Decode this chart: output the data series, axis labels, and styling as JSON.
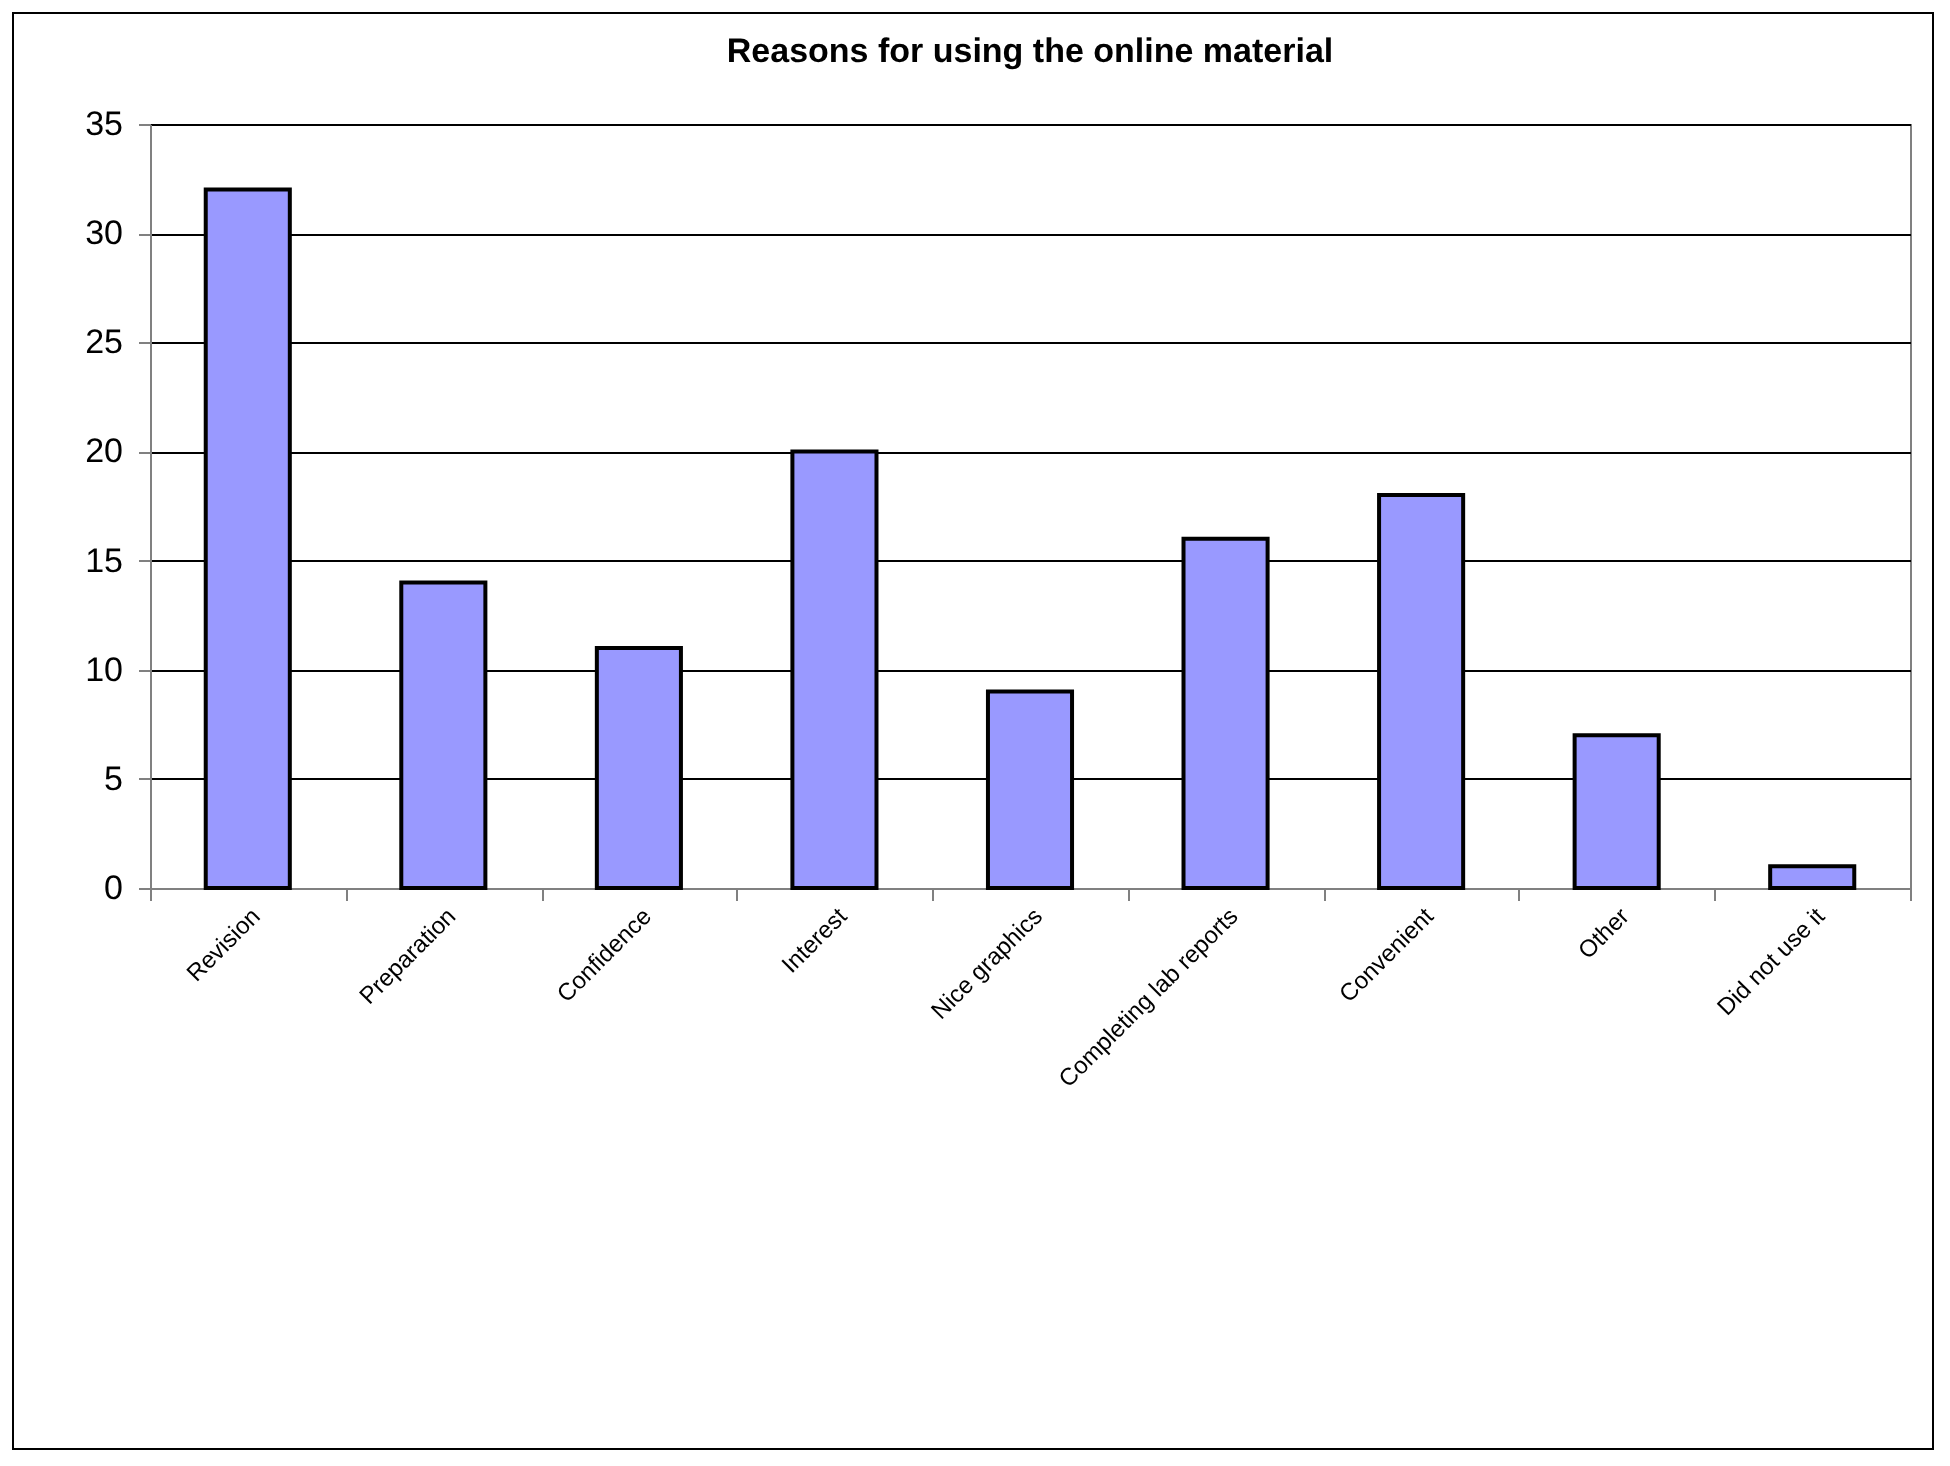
{
  "chart_data": {
    "type": "bar",
    "title": "Reasons for using the online material",
    "categories": [
      "Revision",
      "Preparation",
      "Confidence",
      "Interest",
      "Nice graphics",
      "Completing lab reports",
      "Convenient",
      "Other",
      "Did not use it"
    ],
    "values": [
      32,
      14,
      11,
      20,
      9,
      16,
      18,
      7,
      1
    ],
    "color": "#9999ff",
    "ylim": [
      0,
      35
    ],
    "yticks": [
      0,
      5,
      10,
      15,
      20,
      25,
      30,
      35
    ],
    "grid": "y"
  }
}
